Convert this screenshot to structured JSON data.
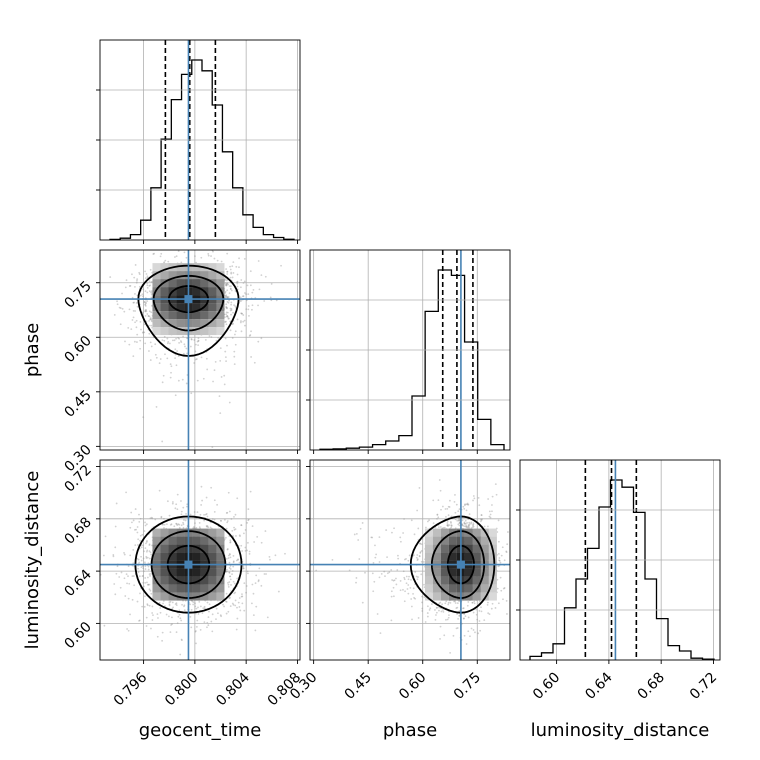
{
  "chart_data": {
    "type": "corner",
    "parameters": [
      {
        "name": "geocent_time",
        "label": "geocent_time",
        "range": [
          0.7926,
          0.8082
        ],
        "ticks": [
          "0.796",
          "0.800",
          "0.804",
          "0.808"
        ],
        "truth": 0.7995,
        "quantiles": [
          0.7977,
          0.7996,
          0.8016
        ]
      },
      {
        "name": "phase",
        "label": "phase",
        "range": [
          0.29,
          0.84
        ],
        "ticks": [
          "0.30",
          "0.45",
          "0.60",
          "0.75"
        ],
        "truth": 0.705,
        "quantiles": [
          0.655,
          0.694,
          0.738
        ]
      },
      {
        "name": "luminosity_distance",
        "label": "luminosity_distance",
        "range": [
          0.572,
          0.725
        ],
        "ticks": [
          "0.60",
          "0.64",
          "0.68",
          "0.72"
        ],
        "truth": 0.645,
        "quantiles": [
          0.622,
          0.642,
          0.661
        ]
      }
    ],
    "histograms": {
      "geocent_time": [
        0.003,
        0.01,
        0.03,
        0.11,
        0.29,
        0.56,
        0.78,
        0.92,
        1.0,
        0.94,
        0.75,
        0.49,
        0.29,
        0.14,
        0.07,
        0.03,
        0.014,
        0.004
      ],
      "phase": [
        0.004,
        0.006,
        0.01,
        0.016,
        0.03,
        0.05,
        0.08,
        0.3,
        0.77,
        1.0,
        0.97,
        0.6,
        0.17,
        0.03
      ],
      "luminosity_distance": [
        0.02,
        0.04,
        0.09,
        0.29,
        0.45,
        0.62,
        0.85,
        1.0,
        0.96,
        0.82,
        0.45,
        0.23,
        0.08,
        0.05,
        0.01,
        0.005
      ]
    },
    "contours": {
      "geocent_time_vs_phase": {
        "center": [
          0.7995,
          0.705
        ],
        "sigma": [
          0.0017,
          0.04
        ],
        "corr": 0.0,
        "tail": "low-y"
      },
      "geocent_time_vs_luminosity_distance": {
        "center": [
          0.7995,
          0.645
        ],
        "sigma": [
          0.0018,
          0.016
        ],
        "corr": 0.0
      },
      "phase_vs_luminosity_distance": {
        "center": [
          0.705,
          0.645
        ],
        "sigma": [
          0.04,
          0.016
        ],
        "corr": 0.0,
        "tail": "low-x"
      }
    },
    "grid": true,
    "truth_color": "#4682b4",
    "line_color": "#000000"
  }
}
